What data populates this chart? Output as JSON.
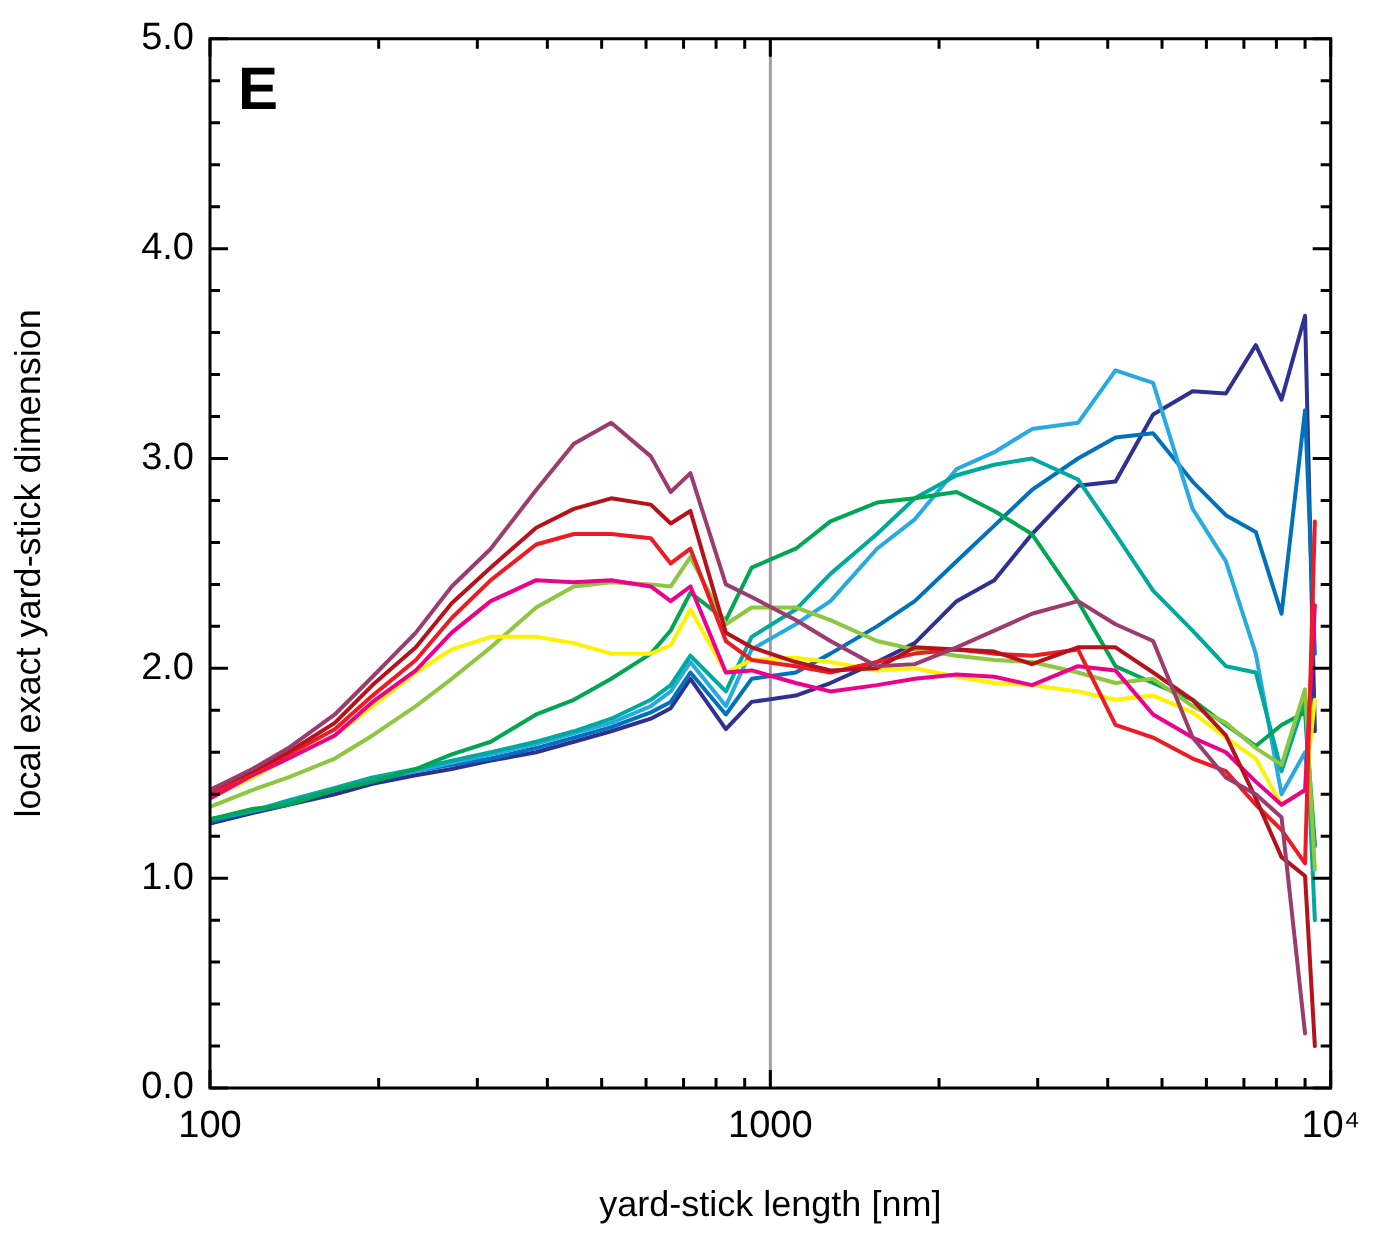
{
  "chart_data": {
    "type": "line",
    "xlabel": "yard-stick length [nm]",
    "ylabel": "local exact yard-stick dimension",
    "annotations": [
      "E"
    ],
    "log": "x",
    "marker": "none",
    "line_style": "solid",
    "xlim": [
      100,
      10000
    ],
    "xticks": [
      100,
      {
        "value": 200,
        "label": null
      },
      {
        "value": 300,
        "label": null
      },
      {
        "value": 400,
        "label": null
      },
      {
        "value": 500,
        "label": null
      },
      {
        "value": 600,
        "label": null
      },
      {
        "value": 700,
        "label": null
      },
      {
        "value": 800,
        "label": null
      },
      {
        "value": 900,
        "label": null
      },
      1000,
      {
        "value": 2000,
        "label": null
      },
      {
        "value": 3000,
        "label": null
      },
      {
        "value": 4000,
        "label": null
      },
      {
        "value": 5000,
        "label": null
      },
      {
        "value": 6000,
        "label": null
      },
      {
        "value": 7000,
        "label": null
      },
      {
        "value": 8000,
        "label": null
      },
      {
        "value": 9000,
        "label": null
      },
      {
        "value": 10000,
        "label": "10⁴"
      }
    ],
    "ylim": [
      0,
      5
    ],
    "yticks": [
      {
        "value": 0,
        "label": "0.0"
      },
      {
        "value": 0.2,
        "label": null
      },
      {
        "value": 0.4,
        "label": null
      },
      {
        "value": 0.6,
        "label": null
      },
      {
        "value": 0.8,
        "label": null
      },
      {
        "value": 1,
        "label": "1.0"
      },
      {
        "value": 1.2,
        "label": null
      },
      {
        "value": 1.4,
        "label": null
      },
      {
        "value": 1.6,
        "label": null
      },
      {
        "value": 1.8,
        "label": null
      },
      {
        "value": 2,
        "label": "2.0"
      },
      {
        "value": 2.2,
        "label": null
      },
      {
        "value": 2.4,
        "label": null
      },
      {
        "value": 2.6,
        "label": null
      },
      {
        "value": 2.8,
        "label": null
      },
      {
        "value": 3,
        "label": "3.0"
      },
      {
        "value": 3.2,
        "label": null
      },
      {
        "value": 3.4,
        "label": null
      },
      {
        "value": 3.6,
        "label": null
      },
      {
        "value": 3.8,
        "label": null
      },
      {
        "value": 4,
        "label": "4.0"
      },
      {
        "value": 4.2,
        "label": null
      },
      {
        "value": 4.4,
        "label": null
      },
      {
        "value": 4.6,
        "label": null
      },
      {
        "value": 4.8,
        "label": null
      },
      {
        "value": 5,
        "label": "5.0"
      }
    ],
    "ref_lines": [
      {
        "axis": "x",
        "value": 1000,
        "color": "#a0a0a0"
      }
    ],
    "x": [
      100,
      119,
      138,
      167,
      195,
      233,
      270,
      317,
      382,
      446,
      520,
      612,
      664,
      720,
      833,
      926,
      1110,
      1280,
      1550,
      1810,
      2150,
      2510,
      2930,
      3540,
      4130,
      4820,
      5670,
      6500,
      7350,
      8170,
      9000,
      9370
    ],
    "series": [
      {
        "color": "#9b3b6e",
        "values": [
          1.42,
          1.52,
          1.62,
          1.78,
          1.96,
          2.17,
          2.39,
          2.57,
          2.85,
          3.07,
          3.17,
          3.01,
          2.84,
          2.93,
          2.4,
          2.34,
          2.23,
          2.13,
          2.01,
          2.02,
          2.1,
          2.18,
          2.26,
          2.32,
          2.21,
          2.13,
          1.67,
          1.48,
          1.4,
          1.29,
          0.26,
          null
        ]
      },
      {
        "color": "#b5121b",
        "values": [
          1.42,
          1.51,
          1.6,
          1.74,
          1.92,
          2.1,
          2.31,
          2.48,
          2.67,
          2.76,
          2.81,
          2.78,
          2.69,
          2.75,
          2.17,
          2.1,
          2.03,
          1.99,
          2.0,
          2.1,
          2.09,
          2.08,
          2.02,
          2.1,
          2.1,
          1.98,
          1.85,
          1.68,
          1.38,
          1.1,
          1.01,
          0.2
        ]
      },
      {
        "color": "#ed1c24",
        "values": [
          1.4,
          1.5,
          1.59,
          1.71,
          1.87,
          2.04,
          2.24,
          2.42,
          2.59,
          2.64,
          2.64,
          2.62,
          2.5,
          2.57,
          2.13,
          2.04,
          2.01,
          1.98,
          2.03,
          2.07,
          2.09,
          2.07,
          2.06,
          2.09,
          1.73,
          1.67,
          1.57,
          1.51,
          1.35,
          1.23,
          1.07,
          2.7
        ]
      },
      {
        "color": "#ec008c",
        "values": [
          1.38,
          1.49,
          1.57,
          1.68,
          1.84,
          1.99,
          2.17,
          2.32,
          2.42,
          2.41,
          2.42,
          2.39,
          2.32,
          2.39,
          1.98,
          1.99,
          1.93,
          1.89,
          1.92,
          1.95,
          1.97,
          1.96,
          1.92,
          2.01,
          1.99,
          1.78,
          1.67,
          1.6,
          1.46,
          1.35,
          1.42,
          2.3
        ]
      },
      {
        "color": "#fff200",
        "values": [
          1.38,
          1.48,
          1.57,
          1.68,
          1.82,
          1.98,
          2.09,
          2.15,
          2.15,
          2.12,
          2.07,
          2.07,
          2.11,
          2.28,
          1.98,
          2.04,
          2.05,
          2.03,
          1.99,
          2.0,
          1.96,
          1.93,
          1.92,
          1.89,
          1.85,
          1.87,
          1.79,
          1.67,
          1.57,
          1.35,
          1.42,
          1.85
        ]
      },
      {
        "color": "#8dc63f",
        "values": [
          1.34,
          1.42,
          1.48,
          1.57,
          1.68,
          1.82,
          1.95,
          2.1,
          2.29,
          2.39,
          2.41,
          2.4,
          2.39,
          2.53,
          2.21,
          2.29,
          2.29,
          2.23,
          2.13,
          2.09,
          2.06,
          2.04,
          2.03,
          1.98,
          1.93,
          1.95,
          1.82,
          1.74,
          1.62,
          1.54,
          1.9,
          1.04
        ]
      },
      {
        "color": "#00a651",
        "values": [
          1.28,
          1.33,
          1.35,
          1.42,
          1.46,
          1.52,
          1.59,
          1.65,
          1.78,
          1.85,
          1.95,
          2.07,
          2.18,
          2.36,
          2.23,
          2.48,
          2.57,
          2.7,
          2.79,
          2.81,
          2.84,
          2.75,
          2.64,
          2.32,
          2.01,
          1.93,
          1.85,
          1.73,
          1.63,
          1.73,
          1.79,
          1.16
        ]
      },
      {
        "color": "#00a99d",
        "values": [
          1.28,
          1.32,
          1.37,
          1.43,
          1.48,
          1.52,
          1.56,
          1.6,
          1.65,
          1.7,
          1.76,
          1.85,
          1.92,
          2.06,
          1.89,
          2.15,
          2.28,
          2.45,
          2.64,
          2.81,
          2.92,
          2.97,
          3.0,
          2.9,
          2.64,
          2.37,
          2.18,
          2.01,
          1.98,
          1.51,
          1.85,
          0.8
        ]
      },
      {
        "color": "#27aae1",
        "values": [
          1.28,
          1.32,
          1.36,
          1.42,
          1.47,
          1.51,
          1.55,
          1.59,
          1.64,
          1.69,
          1.74,
          1.82,
          1.89,
          2.03,
          1.82,
          2.09,
          2.21,
          2.32,
          2.57,
          2.71,
          2.95,
          3.03,
          3.14,
          3.17,
          3.42,
          3.36,
          2.76,
          2.51,
          2.07,
          1.4,
          1.6,
          1.15
        ]
      },
      {
        "color": "#0072bc",
        "values": [
          1.27,
          1.32,
          1.35,
          1.42,
          1.46,
          1.51,
          1.54,
          1.57,
          1.62,
          1.67,
          1.72,
          1.79,
          1.84,
          1.98,
          1.78,
          1.95,
          1.98,
          2.07,
          2.2,
          2.32,
          2.51,
          2.68,
          2.85,
          3.0,
          3.1,
          3.12,
          2.89,
          2.73,
          2.65,
          2.26,
          3.23,
          2.07
        ]
      },
      {
        "color": "#2e3192",
        "values": [
          1.26,
          1.31,
          1.35,
          1.4,
          1.45,
          1.49,
          1.52,
          1.56,
          1.6,
          1.65,
          1.7,
          1.76,
          1.81,
          1.95,
          1.71,
          1.84,
          1.87,
          1.93,
          2.03,
          2.12,
          2.32,
          2.42,
          2.64,
          2.87,
          2.89,
          3.21,
          3.32,
          3.31,
          3.54,
          3.28,
          3.68,
          1.7
        ]
      }
    ]
  }
}
